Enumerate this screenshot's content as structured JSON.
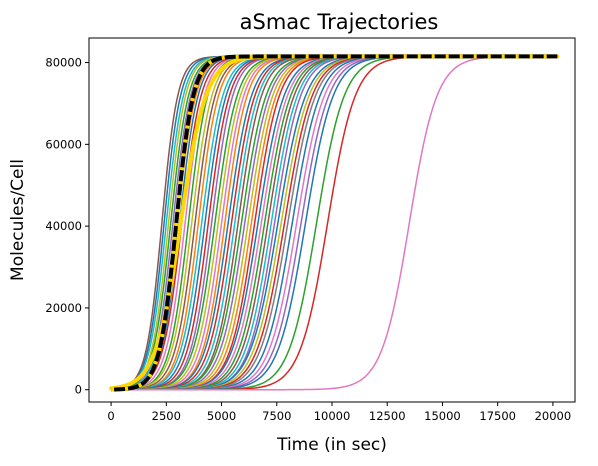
{
  "chart_data": {
    "type": "line",
    "title": "aSmac Trajectories",
    "xlabel": "Time (in sec)",
    "ylabel": "Molecules/Cell",
    "xlim": [
      -1000,
      21000
    ],
    "ylim": [
      -3000,
      86000
    ],
    "xticks": [
      0,
      2500,
      5000,
      7500,
      10000,
      12500,
      15000,
      17500,
      20000
    ],
    "yticks": [
      0,
      20000,
      40000,
      60000,
      80000
    ],
    "xtick_labels": [
      "0",
      "2500",
      "5000",
      "7500",
      "10000",
      "12500",
      "15000",
      "17500",
      "20000"
    ],
    "ytick_labels": [
      "0",
      "20000",
      "40000",
      "60000",
      "80000"
    ],
    "grid": false,
    "legend": false,
    "trajectory_model": "sigmoid",
    "plateau": 81500,
    "x_end": 20200,
    "trajectory_color_cycle": [
      "#1f77b4",
      "#ff7f0e",
      "#2ca02c",
      "#d62728",
      "#9467bd",
      "#8c564b",
      "#e377c2",
      "#7f7f7f",
      "#bcbd22",
      "#17becf"
    ],
    "trajectories": [
      {
        "midpoint": 2300,
        "steepness": 0.0028,
        "color": "#8c564b"
      },
      {
        "midpoint": 2400,
        "steepness": 0.0027,
        "color": "#1f77b4"
      },
      {
        "midpoint": 2500,
        "steepness": 0.0026,
        "color": "#17becf"
      },
      {
        "midpoint": 2600,
        "steepness": 0.0026,
        "color": "#bcbd22"
      },
      {
        "midpoint": 2700,
        "steepness": 0.0025,
        "color": "#2ca02c"
      },
      {
        "midpoint": 2800,
        "steepness": 0.0025,
        "color": "#9467bd"
      },
      {
        "midpoint": 2900,
        "steepness": 0.0024,
        "color": "#17becf"
      },
      {
        "midpoint": 3000,
        "steepness": 0.0024,
        "color": "#ff7f0e"
      },
      {
        "midpoint": 3100,
        "steepness": 0.0024,
        "color": "#1f77b4"
      },
      {
        "midpoint": 3200,
        "steepness": 0.0023,
        "color": "#d62728"
      },
      {
        "midpoint": 3350,
        "steepness": 0.0023,
        "color": "#e377c2"
      },
      {
        "midpoint": 3500,
        "steepness": 0.0023,
        "color": "#2ca02c"
      },
      {
        "midpoint": 3650,
        "steepness": 0.0022,
        "color": "#bcbd22"
      },
      {
        "midpoint": 3800,
        "steepness": 0.0022,
        "color": "#8c564b"
      },
      {
        "midpoint": 3950,
        "steepness": 0.0022,
        "color": "#ff7f0e"
      },
      {
        "midpoint": 4100,
        "steepness": 0.0021,
        "color": "#17becf"
      },
      {
        "midpoint": 4250,
        "steepness": 0.0021,
        "color": "#1f77b4"
      },
      {
        "midpoint": 4400,
        "steepness": 0.0021,
        "color": "#d62728"
      },
      {
        "midpoint": 4550,
        "steepness": 0.0021,
        "color": "#9467bd"
      },
      {
        "midpoint": 4700,
        "steepness": 0.002,
        "color": "#2ca02c"
      },
      {
        "midpoint": 4850,
        "steepness": 0.002,
        "color": "#bcbd22"
      },
      {
        "midpoint": 5000,
        "steepness": 0.002,
        "color": "#e377c2"
      },
      {
        "midpoint": 5150,
        "steepness": 0.002,
        "color": "#ff7f0e"
      },
      {
        "midpoint": 5300,
        "steepness": 0.0019,
        "color": "#1f77b4"
      },
      {
        "midpoint": 5450,
        "steepness": 0.0019,
        "color": "#d62728"
      },
      {
        "midpoint": 5600,
        "steepness": 0.0019,
        "color": "#17becf"
      },
      {
        "midpoint": 5750,
        "steepness": 0.0019,
        "color": "#8c564b"
      },
      {
        "midpoint": 5900,
        "steepness": 0.0018,
        "color": "#2ca02c"
      },
      {
        "midpoint": 6050,
        "steepness": 0.0018,
        "color": "#9467bd"
      },
      {
        "midpoint": 6200,
        "steepness": 0.0018,
        "color": "#bcbd22"
      },
      {
        "midpoint": 6350,
        "steepness": 0.0018,
        "color": "#ff7f0e"
      },
      {
        "midpoint": 6500,
        "steepness": 0.0018,
        "color": "#d62728"
      },
      {
        "midpoint": 6650,
        "steepness": 0.0017,
        "color": "#1f77b4"
      },
      {
        "midpoint": 6800,
        "steepness": 0.0017,
        "color": "#e377c2"
      },
      {
        "midpoint": 6950,
        "steepness": 0.0017,
        "color": "#2ca02c"
      },
      {
        "midpoint": 7100,
        "steepness": 0.0017,
        "color": "#8c564b"
      },
      {
        "midpoint": 7250,
        "steepness": 0.0017,
        "color": "#17becf"
      },
      {
        "midpoint": 7400,
        "steepness": 0.0017,
        "color": "#9467bd"
      },
      {
        "midpoint": 7550,
        "steepness": 0.0016,
        "color": "#1f77b4"
      },
      {
        "midpoint": 7700,
        "steepness": 0.0016,
        "color": "#bcbd22"
      },
      {
        "midpoint": 7850,
        "steepness": 0.0016,
        "color": "#d62728"
      },
      {
        "midpoint": 8000,
        "steepness": 0.0016,
        "color": "#7f7f7f"
      },
      {
        "midpoint": 8200,
        "steepness": 0.0016,
        "color": "#1f77b4"
      },
      {
        "midpoint": 8400,
        "steepness": 0.0016,
        "color": "#e377c2"
      },
      {
        "midpoint": 8600,
        "steepness": 0.0016,
        "color": "#9467bd"
      },
      {
        "midpoint": 8800,
        "steepness": 0.0016,
        "color": "#1f77b4"
      },
      {
        "midpoint": 9300,
        "steepness": 0.0016,
        "color": "#2ca02c"
      },
      {
        "midpoint": 9800,
        "steepness": 0.0016,
        "color": "#d62728"
      },
      {
        "midpoint": 13500,
        "steepness": 0.0016,
        "color": "#e377c2"
      }
    ],
    "series": [
      {
        "kind": "mean",
        "midpoint": 3150,
        "steepness": 0.00175,
        "color": "#ffd700",
        "stroke_width": 4
      },
      {
        "kind": "reference",
        "midpoint": 2950,
        "steepness": 0.0026,
        "color": "#000000",
        "dash_color": "#ffd700",
        "stroke_width": 4
      }
    ]
  }
}
